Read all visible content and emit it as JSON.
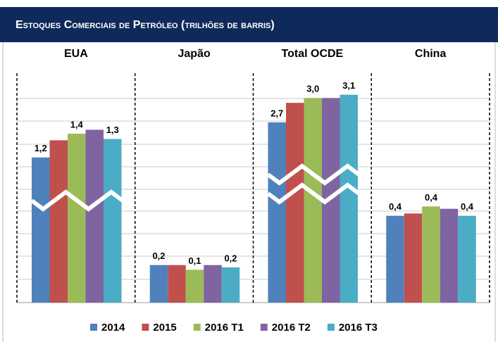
{
  "chart_data": {
    "type": "bar",
    "title": "Estoques Comerciais de Petróleo (trilhões de barris)",
    "categories": [
      "EUA",
      "Japão",
      "Total OCDE",
      "China"
    ],
    "ylims": [
      [
        0.1,
        1.7
      ],
      [
        0,
        0.9
      ],
      [
        0.5,
        3.1
      ],
      [
        0,
        0.9
      ]
    ],
    "series": [
      {
        "name": "2014",
        "color": "#4f81bd",
        "values": [
          1.2,
          0.16,
          2.72,
          0.37
        ],
        "value_labels": [
          "1,2",
          "0,2",
          "2,7",
          "0,4"
        ]
      },
      {
        "name": "2015",
        "color": "#c0504d",
        "values": [
          1.33,
          0.16,
          2.96,
          0.38
        ],
        "value_labels": [
          null,
          null,
          null,
          null
        ]
      },
      {
        "name": "2016 T1",
        "color": "#9bbb59",
        "values": [
          1.38,
          0.14,
          3.02,
          0.41
        ],
        "value_labels": [
          "1,4",
          "0,1",
          "3,0",
          "0,4"
        ]
      },
      {
        "name": "2016 T2",
        "color": "#8064a2",
        "values": [
          1.41,
          0.16,
          3.02,
          0.4
        ],
        "value_labels": [
          null,
          null,
          null,
          null
        ]
      },
      {
        "name": "2016 T3",
        "color": "#4bacc6",
        "values": [
          1.34,
          0.15,
          3.06,
          0.37
        ],
        "value_labels": [
          "1,3",
          "0,2",
          "3,1",
          "0,4"
        ]
      }
    ]
  }
}
